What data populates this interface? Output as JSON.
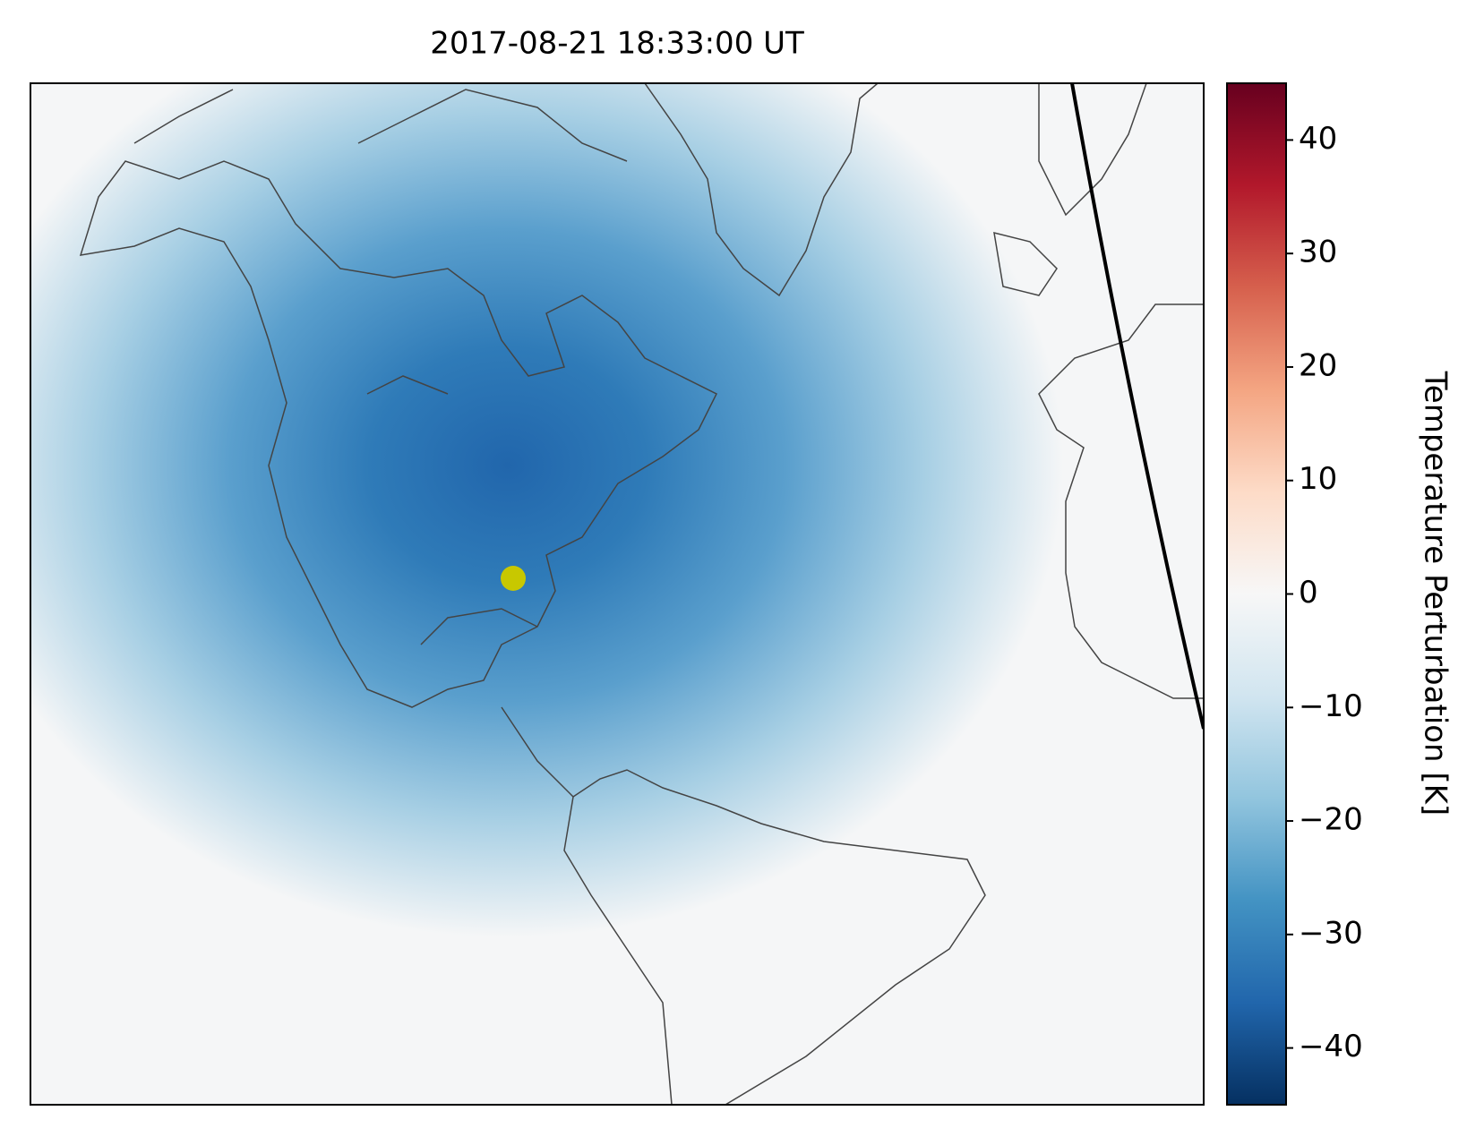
{
  "title": "2017-08-21 18:33:00 UT",
  "colorbar": {
    "label": "Temperature Perturbation [K]",
    "lim": [
      -45,
      45
    ],
    "ticks": [
      {
        "value": -40,
        "label": "−40"
      },
      {
        "value": -30,
        "label": "−30"
      },
      {
        "value": -20,
        "label": "−20"
      },
      {
        "value": -10,
        "label": "−10"
      },
      0,
      10,
      20,
      30,
      40
    ],
    "colors": [
      "#053061",
      "#2166ac",
      "#4393c3",
      "#92c5de",
      "#d1e5f0",
      "#f7f7f7",
      "#fddbc7",
      "#f4a582",
      "#d6604d",
      "#b2182b",
      "#67001f"
    ]
  }
}
